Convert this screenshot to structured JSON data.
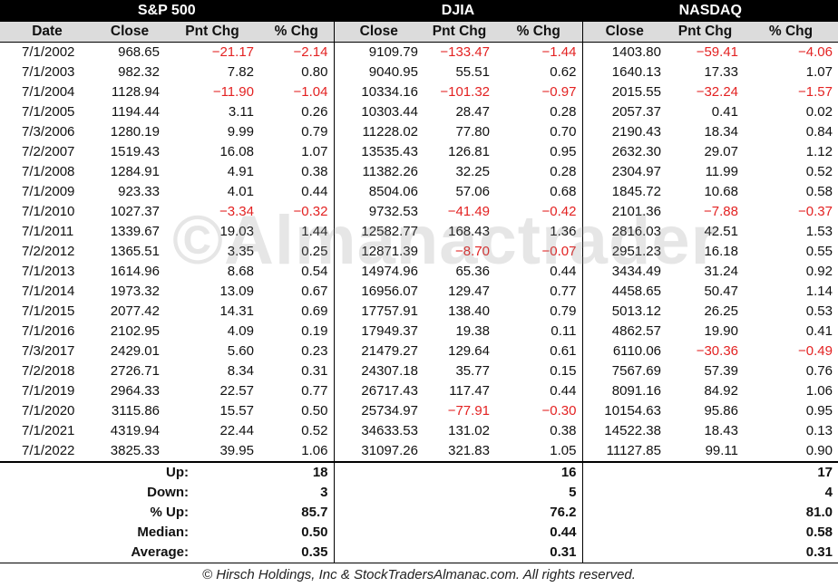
{
  "headers": {
    "groups": [
      "S&P 500",
      "DJIA",
      "NASDAQ"
    ],
    "date": "Date",
    "close": "Close",
    "pnt_chg": "Pnt Chg",
    "pct_chg": "% Chg"
  },
  "rows": [
    {
      "date": "7/1/2002",
      "sp": [
        "968.65",
        "−21.17",
        "−2.14"
      ],
      "djia": [
        "9109.79",
        "−133.47",
        "−1.44"
      ],
      "nasdaq": [
        "1403.80",
        "−59.41",
        "−4.06"
      ]
    },
    {
      "date": "7/1/2003",
      "sp": [
        "982.32",
        "7.82",
        "0.80"
      ],
      "djia": [
        "9040.95",
        "55.51",
        "0.62"
      ],
      "nasdaq": [
        "1640.13",
        "17.33",
        "1.07"
      ]
    },
    {
      "date": "7/1/2004",
      "sp": [
        "1128.94",
        "−11.90",
        "−1.04"
      ],
      "djia": [
        "10334.16",
        "−101.32",
        "−0.97"
      ],
      "nasdaq": [
        "2015.55",
        "−32.24",
        "−1.57"
      ]
    },
    {
      "date": "7/1/2005",
      "sp": [
        "1194.44",
        "3.11",
        "0.26"
      ],
      "djia": [
        "10303.44",
        "28.47",
        "0.28"
      ],
      "nasdaq": [
        "2057.37",
        "0.41",
        "0.02"
      ]
    },
    {
      "date": "7/3/2006",
      "sp": [
        "1280.19",
        "9.99",
        "0.79"
      ],
      "djia": [
        "11228.02",
        "77.80",
        "0.70"
      ],
      "nasdaq": [
        "2190.43",
        "18.34",
        "0.84"
      ]
    },
    {
      "date": "7/2/2007",
      "sp": [
        "1519.43",
        "16.08",
        "1.07"
      ],
      "djia": [
        "13535.43",
        "126.81",
        "0.95"
      ],
      "nasdaq": [
        "2632.30",
        "29.07",
        "1.12"
      ]
    },
    {
      "date": "7/1/2008",
      "sp": [
        "1284.91",
        "4.91",
        "0.38"
      ],
      "djia": [
        "11382.26",
        "32.25",
        "0.28"
      ],
      "nasdaq": [
        "2304.97",
        "11.99",
        "0.52"
      ]
    },
    {
      "date": "7/1/2009",
      "sp": [
        "923.33",
        "4.01",
        "0.44"
      ],
      "djia": [
        "8504.06",
        "57.06",
        "0.68"
      ],
      "nasdaq": [
        "1845.72",
        "10.68",
        "0.58"
      ]
    },
    {
      "date": "7/1/2010",
      "sp": [
        "1027.37",
        "−3.34",
        "−0.32"
      ],
      "djia": [
        "9732.53",
        "−41.49",
        "−0.42"
      ],
      "nasdaq": [
        "2101.36",
        "−7.88",
        "−0.37"
      ]
    },
    {
      "date": "7/1/2011",
      "sp": [
        "1339.67",
        "19.03",
        "1.44"
      ],
      "djia": [
        "12582.77",
        "168.43",
        "1.36"
      ],
      "nasdaq": [
        "2816.03",
        "42.51",
        "1.53"
      ]
    },
    {
      "date": "7/2/2012",
      "sp": [
        "1365.51",
        "3.35",
        "0.25"
      ],
      "djia": [
        "12871.39",
        "−8.70",
        "−0.07"
      ],
      "nasdaq": [
        "2951.23",
        "16.18",
        "0.55"
      ]
    },
    {
      "date": "7/1/2013",
      "sp": [
        "1614.96",
        "8.68",
        "0.54"
      ],
      "djia": [
        "14974.96",
        "65.36",
        "0.44"
      ],
      "nasdaq": [
        "3434.49",
        "31.24",
        "0.92"
      ]
    },
    {
      "date": "7/1/2014",
      "sp": [
        "1973.32",
        "13.09",
        "0.67"
      ],
      "djia": [
        "16956.07",
        "129.47",
        "0.77"
      ],
      "nasdaq": [
        "4458.65",
        "50.47",
        "1.14"
      ]
    },
    {
      "date": "7/1/2015",
      "sp": [
        "2077.42",
        "14.31",
        "0.69"
      ],
      "djia": [
        "17757.91",
        "138.40",
        "0.79"
      ],
      "nasdaq": [
        "5013.12",
        "26.25",
        "0.53"
      ]
    },
    {
      "date": "7/1/2016",
      "sp": [
        "2102.95",
        "4.09",
        "0.19"
      ],
      "djia": [
        "17949.37",
        "19.38",
        "0.11"
      ],
      "nasdaq": [
        "4862.57",
        "19.90",
        "0.41"
      ]
    },
    {
      "date": "7/3/2017",
      "sp": [
        "2429.01",
        "5.60",
        "0.23"
      ],
      "djia": [
        "21479.27",
        "129.64",
        "0.61"
      ],
      "nasdaq": [
        "6110.06",
        "−30.36",
        "−0.49"
      ]
    },
    {
      "date": "7/2/2018",
      "sp": [
        "2726.71",
        "8.34",
        "0.31"
      ],
      "djia": [
        "24307.18",
        "35.77",
        "0.15"
      ],
      "nasdaq": [
        "7567.69",
        "57.39",
        "0.76"
      ]
    },
    {
      "date": "7/1/2019",
      "sp": [
        "2964.33",
        "22.57",
        "0.77"
      ],
      "djia": [
        "26717.43",
        "117.47",
        "0.44"
      ],
      "nasdaq": [
        "8091.16",
        "84.92",
        "1.06"
      ]
    },
    {
      "date": "7/1/2020",
      "sp": [
        "3115.86",
        "15.57",
        "0.50"
      ],
      "djia": [
        "25734.97",
        "−77.91",
        "−0.30"
      ],
      "nasdaq": [
        "10154.63",
        "95.86",
        "0.95"
      ]
    },
    {
      "date": "7/1/2021",
      "sp": [
        "4319.94",
        "22.44",
        "0.52"
      ],
      "djia": [
        "34633.53",
        "131.02",
        "0.38"
      ],
      "nasdaq": [
        "14522.38",
        "18.43",
        "0.13"
      ]
    },
    {
      "date": "7/1/2022",
      "sp": [
        "3825.33",
        "39.95",
        "1.06"
      ],
      "djia": [
        "31097.26",
        "321.83",
        "1.05"
      ],
      "nasdaq": [
        "11127.85",
        "99.11",
        "0.90"
      ]
    }
  ],
  "summary": [
    {
      "label": "Up:",
      "sp": "18",
      "djia": "16",
      "nasdaq": "17"
    },
    {
      "label": "Down:",
      "sp": "3",
      "djia": "5",
      "nasdaq": "4"
    },
    {
      "label": "% Up:",
      "sp": "85.7",
      "djia": "76.2",
      "nasdaq": "81.0"
    },
    {
      "label": "Median:",
      "sp": "0.50",
      "djia": "0.44",
      "nasdaq": "0.58"
    },
    {
      "label": "Average:",
      "sp": "0.35",
      "djia": "0.31",
      "nasdaq": "0.31"
    }
  ],
  "footer": "© Hirsch Holdings, Inc & StockTradersAlmanac.com. All rights reserved.",
  "watermark": "©Almanactrader",
  "colors": {
    "negative": "#e32222",
    "header_bg": "#000000",
    "subheader_bg": "#dcdcdc"
  }
}
